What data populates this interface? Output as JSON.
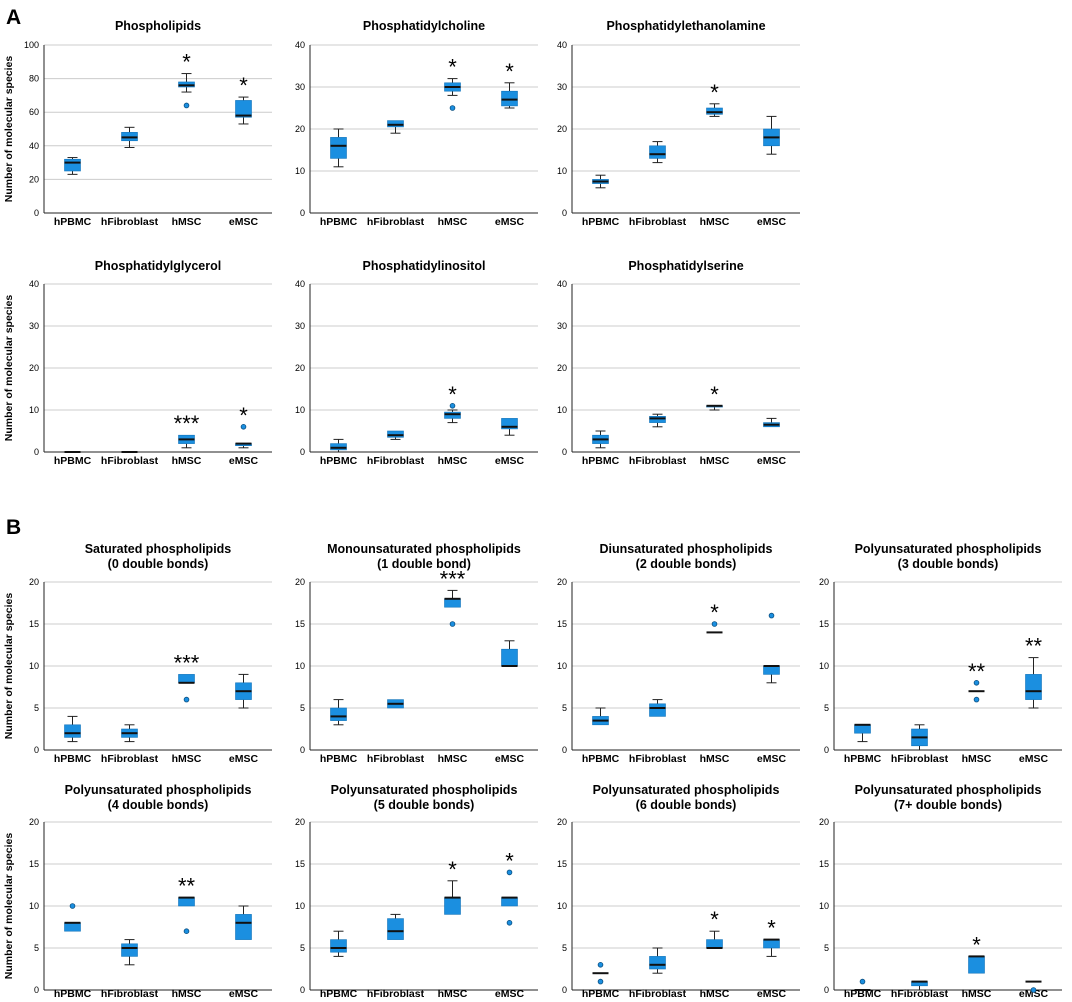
{
  "panel_labels": {
    "a": "A",
    "b": "B"
  },
  "colors": {
    "box": "#1b8fe0",
    "median": "#111111",
    "whisker": "#222222",
    "grid": "#cccccc",
    "outlier_fill": "#1b8fe0",
    "outlier_stroke": "#0a4f80",
    "axis": "#222222"
  },
  "chart_data": [
    {
      "type": "box",
      "panel": "A",
      "title": [
        "Phospholipids"
      ],
      "ylabel": "Number of molecular species",
      "ylim": [
        0,
        100
      ],
      "yticks": [
        0,
        20,
        40,
        60,
        80,
        100
      ],
      "grid": true,
      "categories": [
        "hPBMC",
        "hFibroblast",
        "hMSC",
        "eMSC"
      ],
      "boxes": [
        {
          "min": 23,
          "q1": 25,
          "median": 30,
          "q3": 32,
          "max": 33,
          "outliers": [],
          "sig": ""
        },
        {
          "min": 39,
          "q1": 43,
          "median": 45,
          "q3": 48,
          "max": 51,
          "outliers": [],
          "sig": ""
        },
        {
          "min": 72,
          "q1": 75,
          "median": 76,
          "q3": 78,
          "max": 83,
          "outliers": [
            64
          ],
          "sig": "*"
        },
        {
          "min": 53,
          "q1": 57,
          "median": 58,
          "q3": 67,
          "max": 69,
          "outliers": [],
          "sig": "*"
        }
      ]
    },
    {
      "type": "box",
      "panel": "A",
      "title": [
        "Phosphatidylcholine"
      ],
      "ylabel": "",
      "ylim": [
        0,
        40
      ],
      "yticks": [
        0,
        10,
        20,
        30,
        40
      ],
      "grid": true,
      "categories": [
        "hPBMC",
        "hFibroblast",
        "hMSC",
        "eMSC"
      ],
      "boxes": [
        {
          "min": 11,
          "q1": 13,
          "median": 16,
          "q3": 18,
          "max": 20,
          "outliers": [],
          "sig": ""
        },
        {
          "min": 19,
          "q1": 20.5,
          "median": 21,
          "q3": 22,
          "max": 22,
          "outliers": [],
          "sig": ""
        },
        {
          "min": 28,
          "q1": 29,
          "median": 30,
          "q3": 31,
          "max": 32,
          "outliers": [
            25
          ],
          "sig": "*"
        },
        {
          "min": 25,
          "q1": 25.5,
          "median": 27,
          "q3": 29,
          "max": 31,
          "outliers": [],
          "sig": "*"
        }
      ]
    },
    {
      "type": "box",
      "panel": "A",
      "title": [
        "Phosphatidylethanolamine"
      ],
      "ylabel": "",
      "ylim": [
        0,
        40
      ],
      "yticks": [
        0,
        10,
        20,
        30,
        40
      ],
      "grid": true,
      "categories": [
        "hPBMC",
        "hFibroblast",
        "hMSC",
        "eMSC"
      ],
      "boxes": [
        {
          "min": 6,
          "q1": 7,
          "median": 7.5,
          "q3": 8,
          "max": 9,
          "outliers": [],
          "sig": ""
        },
        {
          "min": 12,
          "q1": 13,
          "median": 14,
          "q3": 16,
          "max": 17,
          "outliers": [],
          "sig": ""
        },
        {
          "min": 23,
          "q1": 23.5,
          "median": 24,
          "q3": 25,
          "max": 26,
          "outliers": [],
          "sig": "*"
        },
        {
          "min": 14,
          "q1": 16,
          "median": 18,
          "q3": 20,
          "max": 23,
          "outliers": [],
          "sig": ""
        }
      ]
    },
    {
      "type": "box",
      "panel": "A",
      "title": [
        "Phosphatidylglycerol"
      ],
      "ylabel": "Number of molecular species",
      "ylim": [
        0,
        40
      ],
      "yticks": [
        0,
        10,
        20,
        30,
        40
      ],
      "grid": true,
      "categories": [
        "hPBMC",
        "hFibroblast",
        "hMSC",
        "eMSC"
      ],
      "boxes": [
        {
          "min": 0,
          "q1": 0,
          "median": 0,
          "q3": 0,
          "max": 0,
          "outliers": [],
          "sig": ""
        },
        {
          "min": 0,
          "q1": 0,
          "median": 0,
          "q3": 0,
          "max": 0,
          "outliers": [],
          "sig": ""
        },
        {
          "min": 1,
          "q1": 2,
          "median": 3,
          "q3": 4,
          "max": 4,
          "outliers": [],
          "sig": "***"
        },
        {
          "min": 1,
          "q1": 1.5,
          "median": 2,
          "q3": 2,
          "max": 2,
          "outliers": [
            6
          ],
          "sig": "*"
        }
      ]
    },
    {
      "type": "box",
      "panel": "A",
      "title": [
        "Phosphatidylinositol"
      ],
      "ylabel": "",
      "ylim": [
        0,
        40
      ],
      "yticks": [
        0,
        10,
        20,
        30,
        40
      ],
      "grid": true,
      "categories": [
        "hPBMC",
        "hFibroblast",
        "hMSC",
        "eMSC"
      ],
      "boxes": [
        {
          "min": 0,
          "q1": 0.5,
          "median": 1,
          "q3": 2,
          "max": 3,
          "outliers": [],
          "sig": ""
        },
        {
          "min": 3,
          "q1": 3.5,
          "median": 4,
          "q3": 5,
          "max": 5,
          "outliers": [],
          "sig": ""
        },
        {
          "min": 7,
          "q1": 8,
          "median": 9,
          "q3": 9.5,
          "max": 10,
          "outliers": [
            11
          ],
          "sig": "*"
        },
        {
          "min": 4,
          "q1": 5.5,
          "median": 6,
          "q3": 8,
          "max": 8,
          "outliers": [],
          "sig": ""
        }
      ]
    },
    {
      "type": "box",
      "panel": "A",
      "title": [
        "Phosphatidylserine"
      ],
      "ylabel": "",
      "ylim": [
        0,
        40
      ],
      "yticks": [
        0,
        10,
        20,
        30,
        40
      ],
      "grid": true,
      "categories": [
        "hPBMC",
        "hFibroblast",
        "hMSC",
        "eMSC"
      ],
      "boxes": [
        {
          "min": 1,
          "q1": 2,
          "median": 3,
          "q3": 4,
          "max": 5,
          "outliers": [],
          "sig": ""
        },
        {
          "min": 6,
          "q1": 7,
          "median": 8,
          "q3": 8.5,
          "max": 9,
          "outliers": [],
          "sig": ""
        },
        {
          "min": 10,
          "q1": 10.7,
          "median": 11,
          "q3": 11,
          "max": 11,
          "outliers": [],
          "sig": "*"
        },
        {
          "min": 6,
          "q1": 6,
          "median": 6.5,
          "q3": 7,
          "max": 8,
          "outliers": [],
          "sig": ""
        }
      ]
    },
    {
      "type": "box",
      "panel": "B",
      "title": [
        "Saturated phospholipids",
        "(0 double bonds)"
      ],
      "ylabel": "Number of molecular species",
      "ylim": [
        0,
        20
      ],
      "yticks": [
        0,
        5,
        10,
        15,
        20
      ],
      "grid": true,
      "categories": [
        "hPBMC",
        "hFibroblast",
        "hMSC",
        "eMSC"
      ],
      "boxes": [
        {
          "min": 1,
          "q1": 1.5,
          "median": 2,
          "q3": 3,
          "max": 4,
          "outliers": [],
          "sig": ""
        },
        {
          "min": 1,
          "q1": 1.5,
          "median": 2,
          "q3": 2.5,
          "max": 3,
          "outliers": [],
          "sig": ""
        },
        {
          "min": 8,
          "q1": 8,
          "median": 8,
          "q3": 9,
          "max": 9,
          "outliers": [
            6
          ],
          "sig": "***"
        },
        {
          "min": 5,
          "q1": 6,
          "median": 7,
          "q3": 8,
          "max": 9,
          "outliers": [],
          "sig": ""
        }
      ]
    },
    {
      "type": "box",
      "panel": "B",
      "title": [
        "Monounsaturated phospholipids",
        "(1 double bond)"
      ],
      "ylabel": "",
      "ylim": [
        0,
        20
      ],
      "yticks": [
        0,
        5,
        10,
        15,
        20
      ],
      "grid": true,
      "categories": [
        "hPBMC",
        "hFibroblast",
        "hMSC",
        "eMSC"
      ],
      "boxes": [
        {
          "min": 3,
          "q1": 3.5,
          "median": 4,
          "q3": 5,
          "max": 6,
          "outliers": [],
          "sig": ""
        },
        {
          "min": 5,
          "q1": 5,
          "median": 5.5,
          "q3": 6,
          "max": 6,
          "outliers": [],
          "sig": ""
        },
        {
          "min": 17,
          "q1": 17,
          "median": 18,
          "q3": 18,
          "max": 19,
          "outliers": [
            15
          ],
          "sig": "***"
        },
        {
          "min": 10,
          "q1": 10,
          "median": 10,
          "q3": 12,
          "max": 13,
          "outliers": [],
          "sig": ""
        }
      ]
    },
    {
      "type": "box",
      "panel": "B",
      "title": [
        "Diunsaturated phospholipids",
        "(2 double bonds)"
      ],
      "ylabel": "",
      "ylim": [
        0,
        20
      ],
      "yticks": [
        0,
        5,
        10,
        15,
        20
      ],
      "grid": true,
      "categories": [
        "hPBMC",
        "hFibroblast",
        "hMSC",
        "eMSC"
      ],
      "boxes": [
        {
          "min": 3,
          "q1": 3,
          "median": 3.5,
          "q3": 4,
          "max": 5,
          "outliers": [],
          "sig": ""
        },
        {
          "min": 4,
          "q1": 4,
          "median": 5,
          "q3": 5.5,
          "max": 6,
          "outliers": [],
          "sig": ""
        },
        {
          "min": 14,
          "q1": 14,
          "median": 14,
          "q3": 14,
          "max": 14,
          "outliers": [
            15
          ],
          "sig": "*"
        },
        {
          "min": 8,
          "q1": 9,
          "median": 10,
          "q3": 10,
          "max": 10,
          "outliers": [
            16
          ],
          "sig": ""
        }
      ]
    },
    {
      "type": "box",
      "panel": "B",
      "title": [
        "Polyunsaturated phospholipids",
        "(3 double bonds)"
      ],
      "ylabel": "",
      "ylim": [
        0,
        20
      ],
      "yticks": [
        0,
        5,
        10,
        15,
        20
      ],
      "grid": true,
      "categories": [
        "hPBMC",
        "hFibroblast",
        "hMSC",
        "eMSC"
      ],
      "boxes": [
        {
          "min": 1,
          "q1": 2,
          "median": 3,
          "q3": 3,
          "max": 3,
          "outliers": [],
          "sig": ""
        },
        {
          "min": 0,
          "q1": 0.5,
          "median": 1.5,
          "q3": 2.5,
          "max": 3,
          "outliers": [],
          "sig": ""
        },
        {
          "min": 7,
          "q1": 7,
          "median": 7,
          "q3": 7,
          "max": 7,
          "outliers": [
            8,
            6
          ],
          "sig": "**"
        },
        {
          "min": 5,
          "q1": 6,
          "median": 7,
          "q3": 9,
          "max": 11,
          "outliers": [],
          "sig": "**"
        }
      ]
    },
    {
      "type": "box",
      "panel": "B",
      "title": [
        "Polyunsaturated phospholipids",
        "(4 double bonds)"
      ],
      "ylabel": "Number of molecular species",
      "ylim": [
        0,
        20
      ],
      "yticks": [
        0,
        5,
        10,
        15,
        20
      ],
      "grid": true,
      "categories": [
        "hPBMC",
        "hFibroblast",
        "hMSC",
        "eMSC"
      ],
      "boxes": [
        {
          "min": 7,
          "q1": 7,
          "median": 8,
          "q3": 8,
          "max": 8,
          "outliers": [
            10
          ],
          "sig": ""
        },
        {
          "min": 3,
          "q1": 4,
          "median": 5,
          "q3": 5.5,
          "max": 6,
          "outliers": [],
          "sig": ""
        },
        {
          "min": 10,
          "q1": 10,
          "median": 11,
          "q3": 11,
          "max": 11,
          "outliers": [
            7
          ],
          "sig": "**"
        },
        {
          "min": 6,
          "q1": 6,
          "median": 8,
          "q3": 9,
          "max": 10,
          "outliers": [],
          "sig": ""
        }
      ]
    },
    {
      "type": "box",
      "panel": "B",
      "title": [
        "Polyunsaturated phospholipids",
        "(5 double bonds)"
      ],
      "ylabel": "",
      "ylim": [
        0,
        20
      ],
      "yticks": [
        0,
        5,
        10,
        15,
        20
      ],
      "grid": true,
      "categories": [
        "hPBMC",
        "hFibroblast",
        "hMSC",
        "eMSC"
      ],
      "boxes": [
        {
          "min": 4,
          "q1": 4.5,
          "median": 5,
          "q3": 6,
          "max": 7,
          "outliers": [],
          "sig": ""
        },
        {
          "min": 6,
          "q1": 6,
          "median": 7,
          "q3": 8.5,
          "max": 9,
          "outliers": [],
          "sig": ""
        },
        {
          "min": 9,
          "q1": 9,
          "median": 11,
          "q3": 11,
          "max": 13,
          "outliers": [],
          "sig": "*"
        },
        {
          "min": 10,
          "q1": 10,
          "median": 11,
          "q3": 11,
          "max": 11,
          "outliers": [
            14,
            8
          ],
          "sig": "*"
        }
      ]
    },
    {
      "type": "box",
      "panel": "B",
      "title": [
        "Polyunsaturated phospholipids",
        "(6 double bonds)"
      ],
      "ylabel": "",
      "ylim": [
        0,
        20
      ],
      "yticks": [
        0,
        5,
        10,
        15,
        20
      ],
      "grid": true,
      "categories": [
        "hPBMC",
        "hFibroblast",
        "hMSC",
        "eMSC"
      ],
      "boxes": [
        {
          "min": 2,
          "q1": 2,
          "median": 2,
          "q3": 2,
          "max": 2,
          "outliers": [
            3,
            1
          ],
          "sig": ""
        },
        {
          "min": 2,
          "q1": 2.5,
          "median": 3,
          "q3": 4,
          "max": 5,
          "outliers": [],
          "sig": ""
        },
        {
          "min": 5,
          "q1": 5,
          "median": 5,
          "q3": 6,
          "max": 7,
          "outliers": [],
          "sig": "*"
        },
        {
          "min": 4,
          "q1": 5,
          "median": 6,
          "q3": 6,
          "max": 6,
          "outliers": [],
          "sig": "*"
        }
      ]
    },
    {
      "type": "box",
      "panel": "B",
      "title": [
        "Polyunsaturated phospholipids",
        "(7+ double bonds)"
      ],
      "ylabel": "",
      "ylim": [
        0,
        20
      ],
      "yticks": [
        0,
        5,
        10,
        15,
        20
      ],
      "grid": true,
      "categories": [
        "hPBMC",
        "hFibroblast",
        "hMSC",
        "eMSC"
      ],
      "boxes": [
        {
          "min": 0,
          "q1": 0,
          "median": 0,
          "q3": 0,
          "max": 0,
          "outliers": [
            1
          ],
          "sig": ""
        },
        {
          "min": 0,
          "q1": 0.5,
          "median": 1,
          "q3": 1,
          "max": 1,
          "outliers": [],
          "sig": ""
        },
        {
          "min": 2,
          "q1": 2,
          "median": 4,
          "q3": 4,
          "max": 4,
          "outliers": [],
          "sig": "*"
        },
        {
          "min": 1,
          "q1": 1,
          "median": 1,
          "q3": 1,
          "max": 1,
          "outliers": [
            0
          ],
          "sig": ""
        }
      ]
    }
  ]
}
